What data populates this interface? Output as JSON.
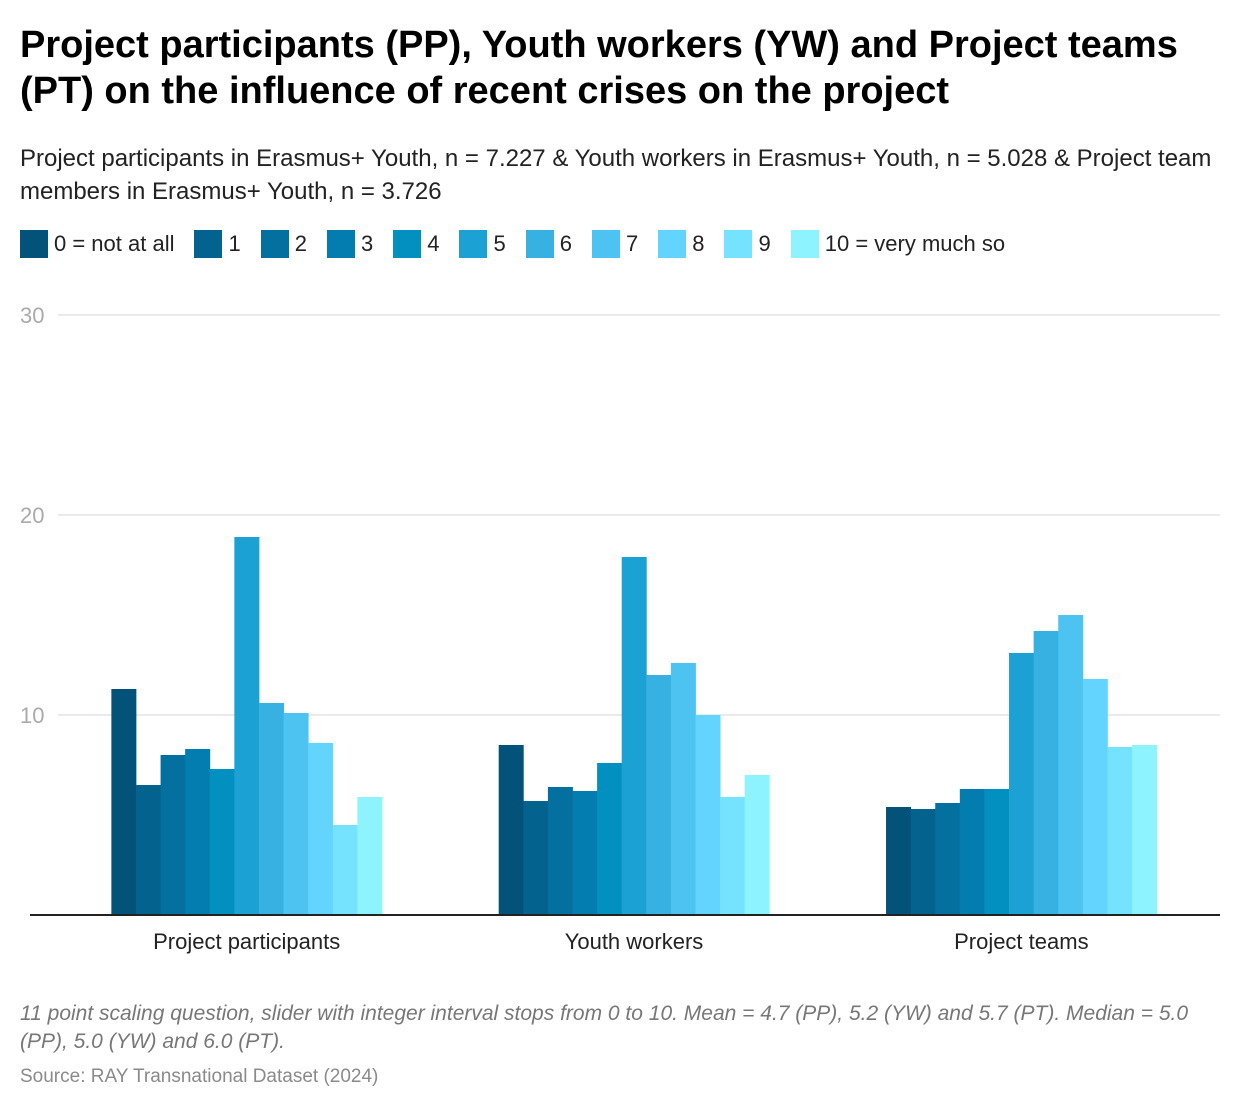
{
  "title": "Project participants (PP), Youth workers (YW) and Project teams (PT) on the influence of recent crises on the project",
  "subtitle": "Project participants in Erasmus+ Youth, n = 7.227 & Youth workers in Erasmus+ Youth, n = 5.028 & Project team members in Erasmus+ Youth, n = 3.726",
  "notes": "11 point scaling question, slider with integer interval stops from 0 to 10. Mean = 4.7 (PP), 5.2 (YW) and 5.7 (PT). Median = 5.0 (PP), 5.0 (YW) and 6.0 (PT).",
  "source": "Source: RAY Transnational Dataset (2024)",
  "chart_data": {
    "type": "bar",
    "categories": [
      "Project participants",
      "Youth workers",
      "Project teams"
    ],
    "ylim": [
      0,
      30
    ],
    "yticks": [
      10,
      20,
      30
    ],
    "grid": true,
    "xlabel": "",
    "ylabel": "",
    "legend_position": "top",
    "series": [
      {
        "name": "0 = not at all",
        "color": "#03527a",
        "values": [
          11.3,
          8.5,
          5.4
        ]
      },
      {
        "name": "1",
        "color": "#03628e",
        "values": [
          6.5,
          5.7,
          5.3
        ]
      },
      {
        "name": "2",
        "color": "#0470a0",
        "values": [
          8.0,
          6.4,
          5.6
        ]
      },
      {
        "name": "3",
        "color": "#037db0",
        "values": [
          8.3,
          6.2,
          6.3
        ]
      },
      {
        "name": "4",
        "color": "#0290c1",
        "values": [
          7.3,
          7.6,
          6.3
        ]
      },
      {
        "name": "5",
        "color": "#1ba1d3",
        "values": [
          18.9,
          17.9,
          13.1
        ]
      },
      {
        "name": "6",
        "color": "#36b1e2",
        "values": [
          10.6,
          12.0,
          14.2
        ]
      },
      {
        "name": "7",
        "color": "#4cc3f0",
        "values": [
          10.1,
          12.6,
          15.0
        ]
      },
      {
        "name": "8",
        "color": "#62d4fd",
        "values": [
          8.6,
          10.0,
          11.8
        ]
      },
      {
        "name": "9",
        "color": "#76e3fe",
        "values": [
          4.5,
          5.9,
          8.4
        ]
      },
      {
        "name": "10 = very much so",
        "color": "#8df4ff",
        "values": [
          5.9,
          7.0,
          8.5
        ]
      }
    ]
  }
}
